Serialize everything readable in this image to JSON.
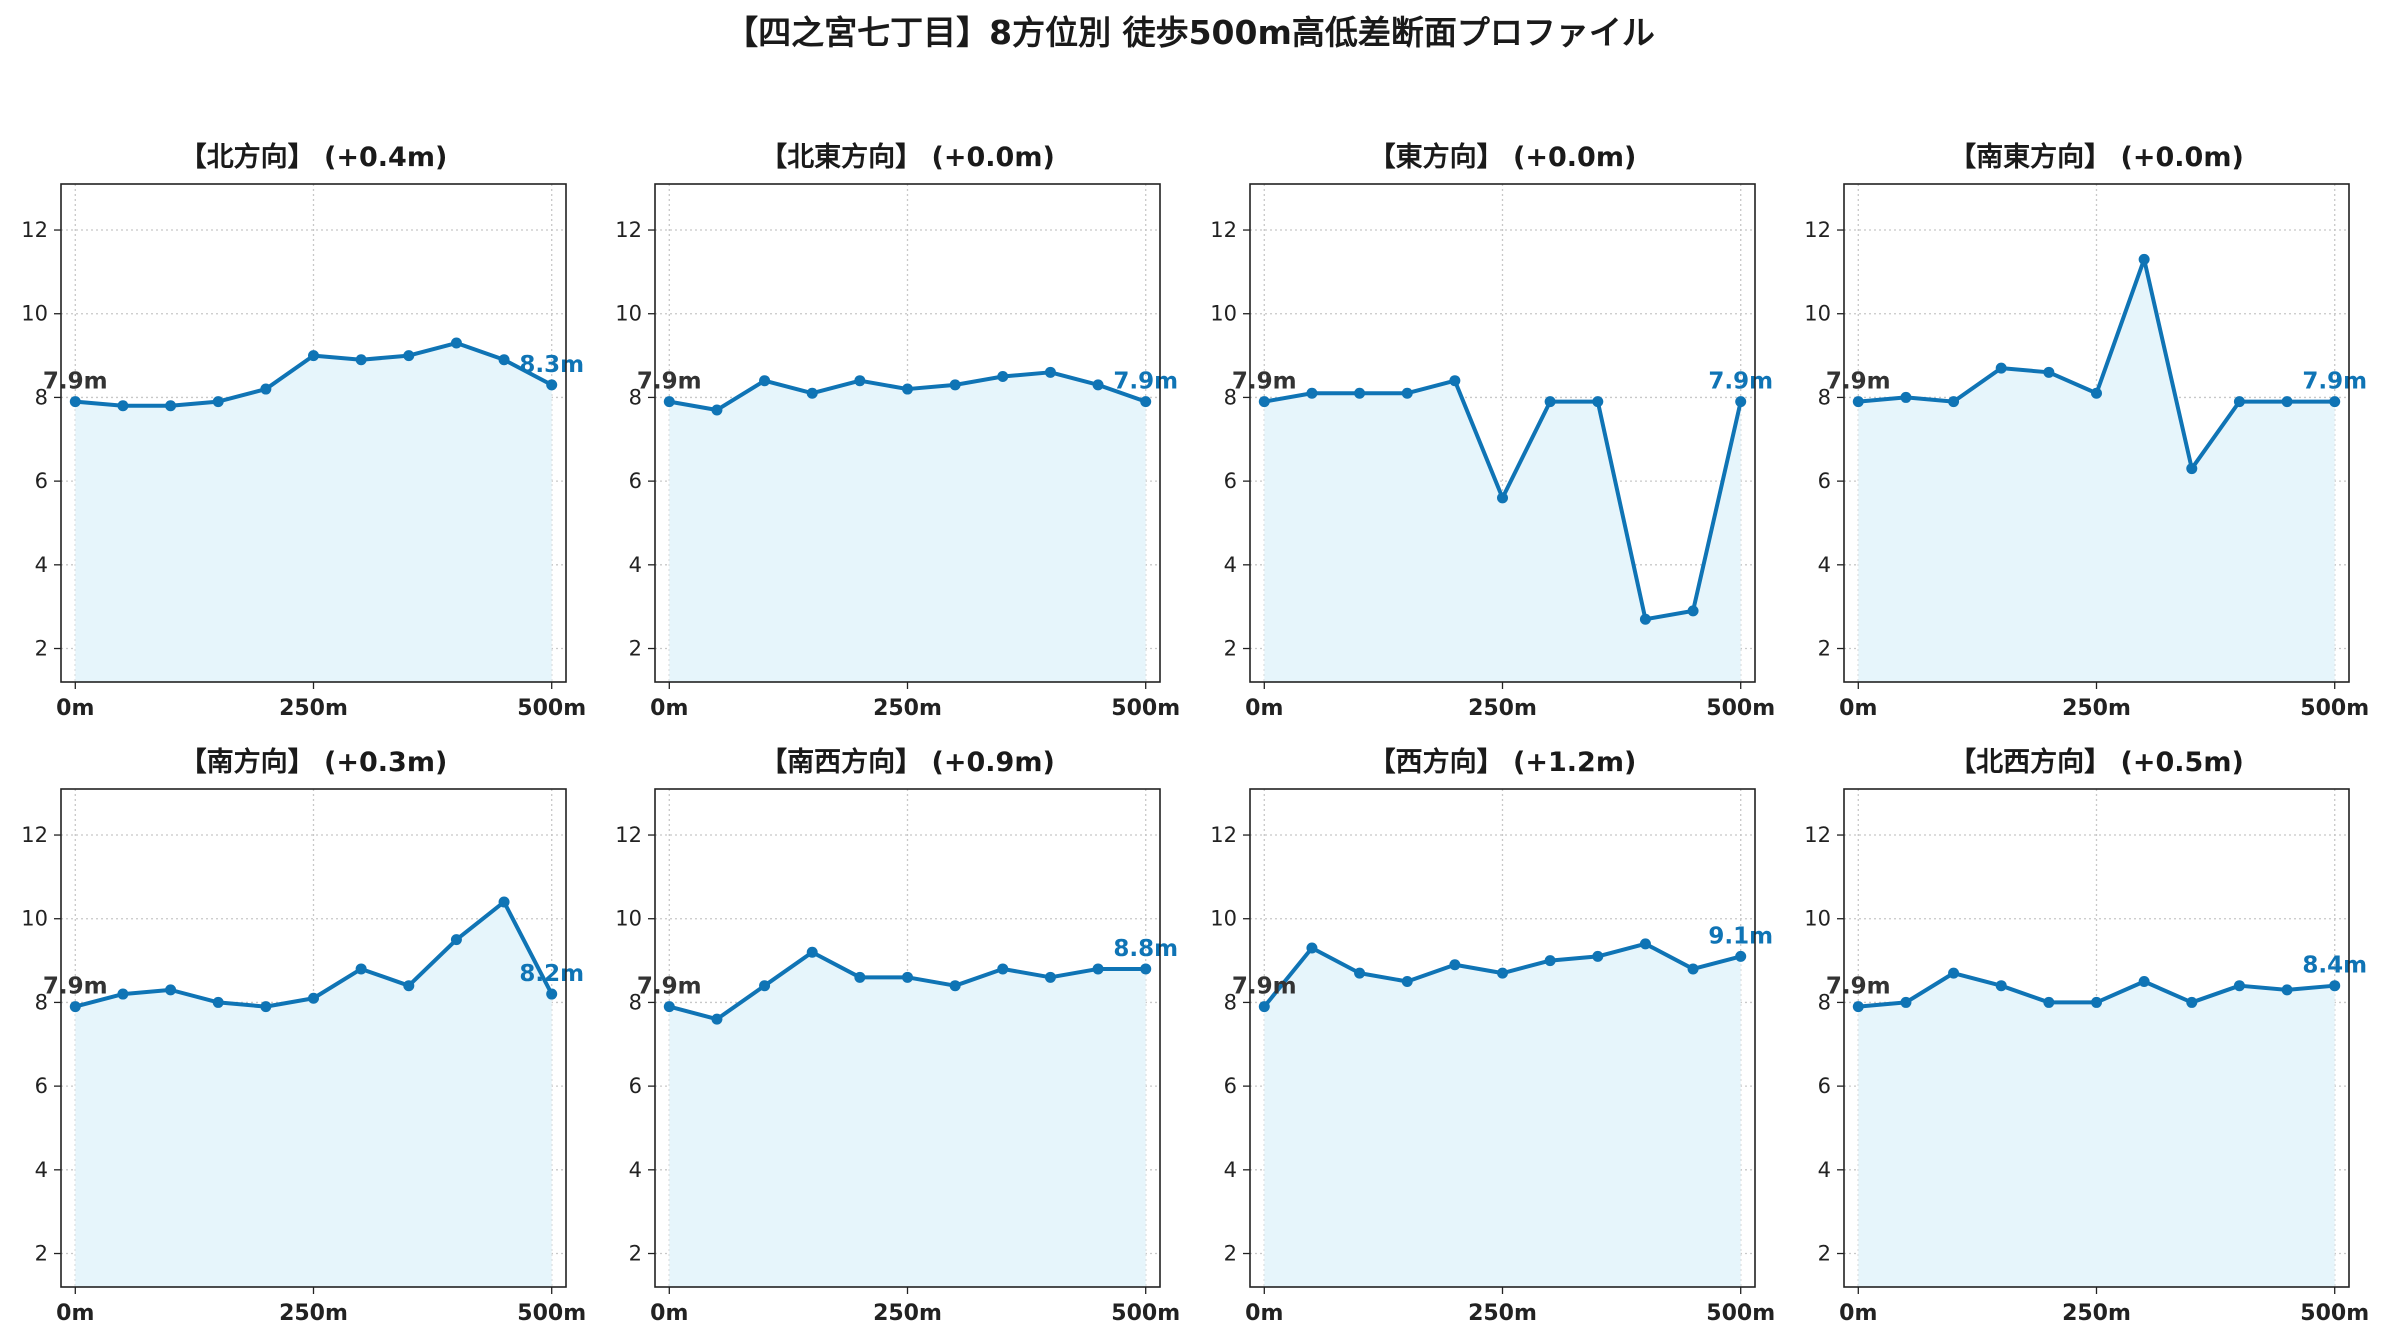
{
  "title": "【四之宮七丁目】8方位別 徒歩500m高低差断面プロファイル",
  "colors": {
    "line": "#0f74b5",
    "fill": "#e6f5fb",
    "start_label": "#333333",
    "end_label": "#0f74b5",
    "grid": "#c8c8c8",
    "axis": "#222222"
  },
  "chart_data": [
    {
      "type": "area",
      "title": "【北方向】 (+0.4m)",
      "x": [
        0,
        50,
        100,
        150,
        200,
        250,
        300,
        350,
        400,
        450,
        500
      ],
      "x_ticks": [
        "0m",
        "250m",
        "500m"
      ],
      "y_ticks": [
        "2",
        "4",
        "6",
        "8",
        "10",
        "12"
      ],
      "ylim": [
        1.2,
        13.1
      ],
      "xlim": [
        -15,
        515
      ],
      "grid": true,
      "values": [
        7.9,
        7.8,
        7.8,
        7.9,
        8.2,
        9.0,
        8.9,
        9.0,
        9.3,
        8.9,
        8.3
      ],
      "start_label": "7.9m",
      "end_label": "8.3m"
    },
    {
      "type": "area",
      "title": "【北東方向】 (+0.0m)",
      "x": [
        0,
        50,
        100,
        150,
        200,
        250,
        300,
        350,
        400,
        450,
        500
      ],
      "x_ticks": [
        "0m",
        "250m",
        "500m"
      ],
      "y_ticks": [
        "2",
        "4",
        "6",
        "8",
        "10",
        "12"
      ],
      "ylim": [
        1.2,
        13.1
      ],
      "xlim": [
        -15,
        515
      ],
      "grid": true,
      "values": [
        7.9,
        7.7,
        8.4,
        8.1,
        8.4,
        8.2,
        8.3,
        8.5,
        8.6,
        8.3,
        7.9
      ],
      "start_label": "7.9m",
      "end_label": "7.9m"
    },
    {
      "type": "area",
      "title": "【東方向】 (+0.0m)",
      "x": [
        0,
        50,
        100,
        150,
        200,
        250,
        300,
        350,
        400,
        450,
        500
      ],
      "x_ticks": [
        "0m",
        "250m",
        "500m"
      ],
      "y_ticks": [
        "2",
        "4",
        "6",
        "8",
        "10",
        "12"
      ],
      "ylim": [
        1.2,
        13.1
      ],
      "xlim": [
        -15,
        515
      ],
      "grid": true,
      "values": [
        7.9,
        8.1,
        8.1,
        8.1,
        8.4,
        5.6,
        7.9,
        7.9,
        2.7,
        2.9,
        7.9
      ],
      "start_label": "7.9m",
      "end_label": "7.9m"
    },
    {
      "type": "area",
      "title": "【南東方向】 (+0.0m)",
      "x": [
        0,
        50,
        100,
        150,
        200,
        250,
        300,
        350,
        400,
        450,
        500
      ],
      "x_ticks": [
        "0m",
        "250m",
        "500m"
      ],
      "y_ticks": [
        "2",
        "4",
        "6",
        "8",
        "10",
        "12"
      ],
      "ylim": [
        1.2,
        13.1
      ],
      "xlim": [
        -15,
        515
      ],
      "grid": true,
      "values": [
        7.9,
        8.0,
        7.9,
        8.7,
        8.6,
        8.1,
        11.3,
        6.3,
        7.9,
        7.9,
        7.9
      ],
      "start_label": "7.9m",
      "end_label": "7.9m"
    },
    {
      "type": "area",
      "title": "【南方向】 (+0.3m)",
      "x": [
        0,
        50,
        100,
        150,
        200,
        250,
        300,
        350,
        400,
        450,
        500
      ],
      "x_ticks": [
        "0m",
        "250m",
        "500m"
      ],
      "y_ticks": [
        "2",
        "4",
        "6",
        "8",
        "10",
        "12"
      ],
      "ylim": [
        1.2,
        13.1
      ],
      "xlim": [
        -15,
        515
      ],
      "grid": true,
      "values": [
        7.9,
        8.2,
        8.3,
        8.0,
        7.9,
        8.1,
        8.8,
        8.4,
        9.5,
        10.4,
        8.2
      ],
      "start_label": "7.9m",
      "end_label": "8.2m"
    },
    {
      "type": "area",
      "title": "【南西方向】 (+0.9m)",
      "x": [
        0,
        50,
        100,
        150,
        200,
        250,
        300,
        350,
        400,
        450,
        500
      ],
      "x_ticks": [
        "0m",
        "250m",
        "500m"
      ],
      "y_ticks": [
        "2",
        "4",
        "6",
        "8",
        "10",
        "12"
      ],
      "ylim": [
        1.2,
        13.1
      ],
      "xlim": [
        -15,
        515
      ],
      "grid": true,
      "values": [
        7.9,
        7.6,
        8.4,
        9.2,
        8.6,
        8.6,
        8.4,
        8.8,
        8.6,
        8.8,
        8.8
      ],
      "start_label": "7.9m",
      "end_label": "8.8m"
    },
    {
      "type": "area",
      "title": "【西方向】 (+1.2m)",
      "x": [
        0,
        50,
        100,
        150,
        200,
        250,
        300,
        350,
        400,
        450,
        500
      ],
      "x_ticks": [
        "0m",
        "250m",
        "500m"
      ],
      "y_ticks": [
        "2",
        "4",
        "6",
        "8",
        "10",
        "12"
      ],
      "ylim": [
        1.2,
        13.1
      ],
      "xlim": [
        -15,
        515
      ],
      "grid": true,
      "values": [
        7.9,
        9.3,
        8.7,
        8.5,
        8.9,
        8.7,
        9.0,
        9.1,
        9.4,
        8.8,
        9.1
      ],
      "start_label": "7.9m",
      "end_label": "9.1m"
    },
    {
      "type": "area",
      "title": "【北西方向】 (+0.5m)",
      "x": [
        0,
        50,
        100,
        150,
        200,
        250,
        300,
        350,
        400,
        450,
        500
      ],
      "x_ticks": [
        "0m",
        "250m",
        "500m"
      ],
      "y_ticks": [
        "2",
        "4",
        "6",
        "8",
        "10",
        "12"
      ],
      "ylim": [
        1.2,
        13.1
      ],
      "xlim": [
        -15,
        515
      ],
      "grid": true,
      "values": [
        7.9,
        8.0,
        8.7,
        8.4,
        8.0,
        8.0,
        8.5,
        8.0,
        8.4,
        8.3,
        8.4
      ],
      "start_label": "7.9m",
      "end_label": "8.4m"
    }
  ]
}
